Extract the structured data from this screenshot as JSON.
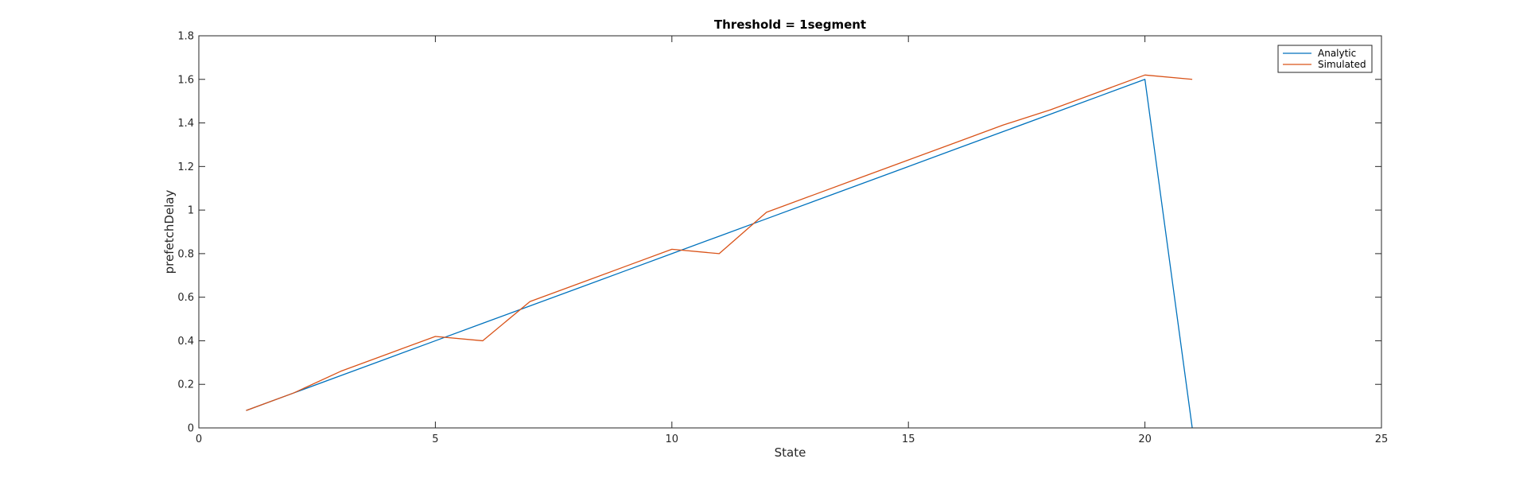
{
  "chart_data": {
    "type": "line",
    "title": "Threshold = 1segment",
    "xlabel": "State",
    "ylabel": "prefetchDelay",
    "xlim": [
      0,
      25
    ],
    "ylim": [
      0,
      1.8
    ],
    "xticks": [
      0,
      5,
      10,
      15,
      20,
      25
    ],
    "xtick_labels": [
      "0",
      "5",
      "10",
      "15",
      "20",
      "25"
    ],
    "yticks": [
      0,
      0.2,
      0.4,
      0.6,
      0.8,
      1.0,
      1.2,
      1.4,
      1.6,
      1.8
    ],
    "ytick_labels": [
      "0",
      "0.2",
      "0.4",
      "0.6",
      "0.8",
      "1",
      "1.2",
      "1.4",
      "1.6",
      "1.8"
    ],
    "grid": false,
    "legend_position": "top-right",
    "series": [
      {
        "name": "Analytic",
        "color": "#0072BD",
        "x": [
          1,
          2,
          3,
          4,
          5,
          6,
          7,
          8,
          9,
          10,
          11,
          12,
          13,
          14,
          15,
          16,
          17,
          18,
          19,
          20,
          21
        ],
        "y": [
          0.08,
          0.16,
          0.24,
          0.32,
          0.4,
          0.48,
          0.56,
          0.64,
          0.72,
          0.8,
          0.88,
          0.96,
          1.04,
          1.12,
          1.2,
          1.28,
          1.36,
          1.44,
          1.52,
          1.6,
          0.0
        ]
      },
      {
        "name": "Simulated",
        "color": "#D95319",
        "x": [
          1,
          2,
          3,
          4,
          5,
          6,
          7,
          8,
          9,
          10,
          11,
          12,
          13,
          14,
          15,
          16,
          17,
          18,
          19,
          20,
          21
        ],
        "y": [
          0.08,
          0.16,
          0.26,
          0.34,
          0.42,
          0.4,
          0.58,
          0.66,
          0.74,
          0.82,
          0.8,
          0.99,
          1.07,
          1.15,
          1.23,
          1.31,
          1.39,
          1.46,
          1.54,
          1.62,
          1.6
        ]
      }
    ]
  }
}
